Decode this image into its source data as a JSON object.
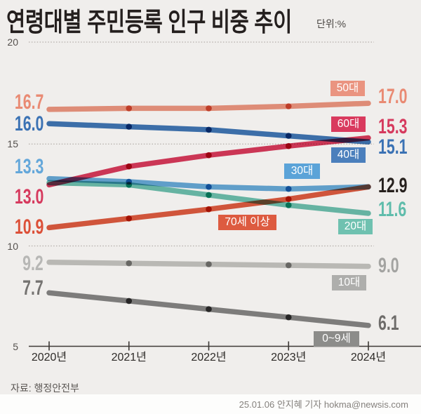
{
  "header": {
    "title": "연령대별 주민등록 인구 비중 추이",
    "unit_label": "단위:%"
  },
  "footer": {
    "source": "자료: 행정안전부",
    "credit": "25.01.06 안지혜 기자 hokma@newsis.com"
  },
  "colors": {
    "background": "#f0eeec",
    "footer_strip": "#fdfdfc",
    "gridline": "#b2ada8",
    "axis": "#3d3936",
    "title_text": "#241f1e",
    "converged_label_text": "#26201d"
  },
  "chart_data": {
    "type": "line",
    "title": "연령대별 주민등록 인구 비중 추이",
    "unit": "%",
    "x_labels": [
      "2020년",
      "2021년",
      "2022년",
      "2023년",
      "2024년"
    ],
    "y_ticks": [
      20,
      15,
      10,
      5
    ],
    "ylim": [
      5,
      20
    ],
    "grid": "horizontal dotted",
    "legend_position": "inline badges on lines",
    "series": [
      {
        "id": "s50",
        "name": "50대",
        "values": [
          16.7,
          16.75,
          16.75,
          16.85,
          17.0
        ],
        "line_color": "#ec9681",
        "marker_color": "#db6f57",
        "badge_color": "#ea9480"
      },
      {
        "id": "s40",
        "name": "40대",
        "values": [
          16.0,
          15.85,
          15.7,
          15.4,
          15.1
        ],
        "line_color": "#4076b6",
        "marker_color": "#1e5c99",
        "badge_color": "#4b7fbc"
      },
      {
        "id": "s60",
        "name": "60대",
        "values": [
          13.0,
          13.9,
          14.45,
          14.9,
          15.3
        ],
        "line_color": "#d83a5c",
        "marker_color": "#c41334",
        "badge_color": "#d93a5e"
      },
      {
        "id": "s30",
        "name": "30대",
        "values": [
          13.3,
          13.15,
          12.9,
          12.8,
          12.9
        ],
        "line_color": "#66a9da",
        "marker_color": "#2f80c0",
        "badge_color": "#5ba3d8"
      },
      {
        "id": "s20",
        "name": "20대",
        "values": [
          13.1,
          13.0,
          12.5,
          12.0,
          11.6
        ],
        "line_color": "#6cc0af",
        "marker_color": "#12a186",
        "badge_color": "#6fc1b0"
      },
      {
        "id": "s70",
        "name": "70세 이상",
        "values": [
          10.9,
          11.35,
          11.8,
          12.3,
          12.9
        ],
        "line_color": "#dd5b40",
        "marker_color": "#c63512",
        "badge_color": "#dd5b40"
      },
      {
        "id": "s10",
        "name": "10대",
        "values": [
          9.2,
          9.15,
          9.1,
          9.05,
          9.0
        ],
        "line_color": "#c5c5c3",
        "marker_color": "#8f8f8d",
        "badge_color": "#aeaeac"
      },
      {
        "id": "s00",
        "name": "0~9세",
        "values": [
          7.7,
          7.3,
          6.9,
          6.5,
          6.1
        ],
        "line_color": "#858585",
        "marker_color": "#4e4e4e",
        "badge_color": "#8c8c8a"
      }
    ],
    "left_value_labels": [
      {
        "id": "v50-start",
        "text": "16.7",
        "color": "#e98a73"
      },
      {
        "id": "v40-start",
        "text": "16.0",
        "color": "#3b72b4"
      },
      {
        "id": "v30-start",
        "text": "13.3",
        "color": "#64a7da"
      },
      {
        "id": "v60-start",
        "text": "13.0",
        "color": "#d63a5e"
      },
      {
        "id": "v70-start",
        "text": "10.9",
        "color": "#dc5038"
      },
      {
        "id": "v10-start",
        "text": "9.2",
        "color": "#b7b7b5"
      },
      {
        "id": "v00-start",
        "text": "7.7",
        "color": "#757371"
      }
    ],
    "right_value_labels": [
      {
        "id": "v50-end",
        "text": "17.0",
        "color": "#e98a73"
      },
      {
        "id": "v60-end",
        "text": "15.3",
        "color": "#d63a5e"
      },
      {
        "id": "v40-end",
        "text": "15.1",
        "color": "#3b72b4"
      },
      {
        "id": "v3070-end",
        "text": "12.9",
        "color": "#26201d"
      },
      {
        "id": "v20-end",
        "text": "11.6",
        "color": "#5fbcab"
      },
      {
        "id": "v10-end",
        "text": "9.0",
        "color": "#a3a3a1"
      },
      {
        "id": "v00-end",
        "text": "6.1",
        "color": "#6e6c6a"
      }
    ]
  }
}
